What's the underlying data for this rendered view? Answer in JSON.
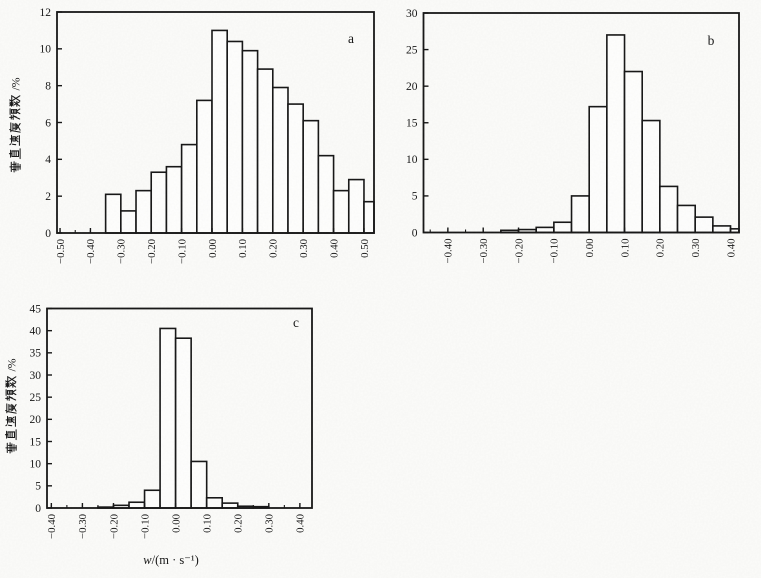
{
  "page": {
    "background": "#fcfcfa",
    "ink": "#171717"
  },
  "chart_data": [
    {
      "type": "bar",
      "panel_label": "a",
      "ylabel": "垂直速度频数 /%",
      "xlabel": "",
      "xlim": [
        -0.51,
        0.533
      ],
      "ylim": [
        0,
        12
      ],
      "xticks": [
        -0.5,
        -0.4,
        -0.3,
        -0.2,
        -0.1,
        0.0,
        0.1,
        0.2,
        0.3,
        0.4,
        0.5
      ],
      "xtick_labels": [
        "-0.50",
        "-0.40",
        "-0.30",
        "-0.20",
        "-0.10",
        "0.00",
        "0.10",
        "0.20",
        "0.30",
        "0.40",
        "0.50"
      ],
      "yticks": [
        0,
        2,
        4,
        6,
        8,
        10,
        12
      ],
      "ytick_labels": [
        "0",
        "2",
        "4",
        "6",
        "8",
        "10",
        "12"
      ],
      "x_minor_step": 0.05,
      "grid": false,
      "bin_start": -0.35,
      "bin_width": 0.05,
      "values": [
        2.1,
        1.2,
        2.3,
        3.3,
        3.6,
        4.8,
        7.2,
        11.0,
        10.4,
        9.9,
        8.9,
        7.9,
        7.0,
        6.1,
        4.2,
        2.3,
        2.9,
        1.7
      ]
    },
    {
      "type": "bar",
      "panel_label": "b",
      "ylabel": "",
      "xlabel": "",
      "xlim": [
        -0.469,
        0.424
      ],
      "ylim": [
        0,
        30
      ],
      "xticks": [
        -0.4,
        -0.3,
        -0.2,
        -0.1,
        0.0,
        0.1,
        0.2,
        0.3,
        0.4
      ],
      "xtick_labels": [
        "-0.40",
        "-0.30",
        "-0.20",
        "-0.10",
        "0.00",
        "0.10",
        "0.20",
        "0.30",
        "0.40"
      ],
      "yticks": [
        0,
        5,
        10,
        15,
        20,
        25,
        30
      ],
      "ytick_labels": [
        "0",
        "5",
        "10",
        "15",
        "20",
        "25",
        "30"
      ],
      "x_minor_step": 0.05,
      "grid": false,
      "bin_start": -0.25,
      "bin_width": 0.05,
      "values": [
        0.3,
        0.4,
        0.7,
        1.4,
        5.0,
        17.2,
        27.0,
        22.0,
        15.3,
        6.3,
        3.7,
        2.1,
        0.9,
        0.5
      ]
    },
    {
      "type": "bar",
      "panel_label": "c",
      "ylabel": "垂直速度频数 /%",
      "xlabel": "w/(m·s⁻¹)",
      "xlim": [
        -0.414,
        0.439
      ],
      "ylim": [
        0,
        45
      ],
      "xticks": [
        -0.4,
        -0.3,
        -0.2,
        -0.1,
        0.0,
        0.1,
        0.2,
        0.3,
        0.4
      ],
      "xtick_labels": [
        "-0.40",
        "-0.30",
        "-0.20",
        "-0.10",
        "0.00",
        "0.10",
        "0.20",
        "0.30",
        "0.40"
      ],
      "yticks": [
        0,
        5,
        10,
        15,
        20,
        25,
        30,
        35,
        40,
        45
      ],
      "ytick_labels": [
        "0",
        "5",
        "10",
        "15",
        "20",
        "25",
        "30",
        "35",
        "40",
        "45"
      ],
      "x_minor_step": 0.05,
      "grid": false,
      "bin_start": -0.25,
      "bin_width": 0.05,
      "values": [
        0.2,
        0.6,
        1.3,
        4.0,
        40.5,
        38.3,
        10.5,
        2.3,
        1.1,
        0.4,
        0.3
      ]
    }
  ]
}
